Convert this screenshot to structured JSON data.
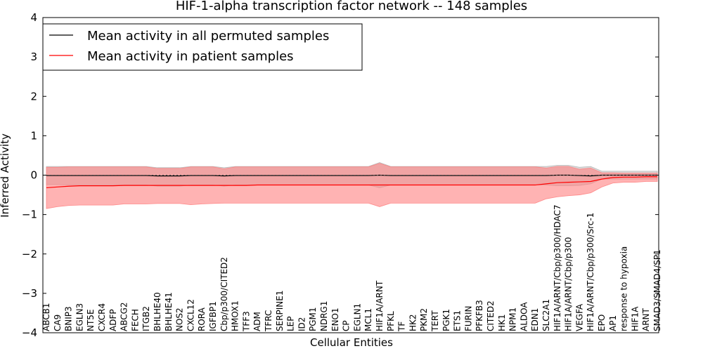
{
  "chart_data": {
    "type": "line",
    "title": "HIF-1-alpha transcription factor network -- 148 samples",
    "xlabel": "Cellular Entities",
    "ylabel": "Inferred Activity",
    "ylim": [
      -4,
      4
    ],
    "yticks": [
      -4,
      -3,
      -2,
      -1,
      0,
      1,
      2,
      3,
      4
    ],
    "legend_position": "top-left",
    "grid": false,
    "colors": {
      "permuted": "#000000",
      "patient": "#ff0000",
      "permuted_band": "#b3b3b3",
      "patient_band": "#ff8080",
      "zero_line": "#555555"
    },
    "x": [
      "ABCB1",
      "CA9",
      "BNIP3",
      "EGLN3",
      "NT5E",
      "CXCR4",
      "ADFP",
      "ABCG2",
      "FECH",
      "ITGB2",
      "BHLHE40",
      "BHLHE41",
      "NOS2",
      "CXCL12",
      "RORA",
      "IGFBP1",
      "Cbp/p300/CITED2",
      "HMOX1",
      "TFF3",
      "ADM",
      "TFRC",
      "SERPINE1",
      "LEP",
      "ID2",
      "PGM1",
      "NDRG1",
      "ENO1",
      "CP",
      "EGLN1",
      "MCL1",
      "HIF1A/ARNT",
      "PFKL",
      "TF",
      "HK2",
      "PKM2",
      "TERT",
      "PGK1",
      "ETS1",
      "FURIN",
      "PFKFB3",
      "CITED2",
      "HK1",
      "NPM1",
      "ALDOA",
      "EDN1",
      "SLC2A1",
      "HIF1A/ARNT/Cbp/p300/HDAC7",
      "HIF1A/ARNT/Cbp/p300",
      "VEGFA",
      "HIF1A/ARNT/Cbp/p300/Src-1",
      "EPO",
      "AP1",
      "response to hypoxia",
      "HIF1A",
      "ARNT",
      "SMAD3/SMAD4/SP1"
    ],
    "series": [
      {
        "name": "Mean activity in all permuted samples",
        "values": [
          -0.01,
          -0.01,
          -0.01,
          -0.01,
          -0.01,
          -0.01,
          -0.01,
          -0.01,
          -0.01,
          -0.01,
          -0.02,
          -0.02,
          -0.02,
          -0.01,
          -0.01,
          -0.01,
          -0.02,
          -0.01,
          -0.01,
          -0.01,
          -0.01,
          -0.01,
          -0.01,
          -0.01,
          -0.01,
          -0.01,
          -0.01,
          -0.01,
          -0.01,
          -0.01,
          0.0,
          -0.01,
          -0.01,
          -0.01,
          -0.01,
          -0.01,
          -0.01,
          -0.01,
          -0.01,
          -0.01,
          -0.01,
          -0.01,
          -0.01,
          -0.01,
          -0.01,
          -0.01,
          0.0,
          0.0,
          -0.01,
          -0.02,
          0.0,
          0.0,
          0.0,
          0.0,
          0.0,
          0.0
        ],
        "lower": [
          -0.24,
          -0.24,
          -0.25,
          -0.25,
          -0.25,
          -0.25,
          -0.25,
          -0.25,
          -0.25,
          -0.25,
          -0.28,
          -0.28,
          -0.28,
          -0.25,
          -0.25,
          -0.25,
          -0.28,
          -0.25,
          -0.25,
          -0.25,
          -0.25,
          -0.25,
          -0.25,
          -0.25,
          -0.25,
          -0.25,
          -0.25,
          -0.25,
          -0.25,
          -0.25,
          -0.32,
          -0.25,
          -0.25,
          -0.25,
          -0.25,
          -0.25,
          -0.25,
          -0.25,
          -0.25,
          -0.25,
          -0.25,
          -0.25,
          -0.25,
          -0.25,
          -0.25,
          -0.25,
          -0.27,
          -0.27,
          -0.26,
          -0.22,
          -0.1,
          -0.1,
          -0.1,
          -0.1,
          -0.1,
          -0.1
        ],
        "upper": [
          0.22,
          0.22,
          0.22,
          0.22,
          0.22,
          0.22,
          0.22,
          0.22,
          0.22,
          0.22,
          0.19,
          0.19,
          0.19,
          0.22,
          0.22,
          0.22,
          0.19,
          0.22,
          0.22,
          0.22,
          0.22,
          0.22,
          0.22,
          0.22,
          0.22,
          0.22,
          0.22,
          0.22,
          0.22,
          0.22,
          0.32,
          0.22,
          0.22,
          0.22,
          0.22,
          0.22,
          0.22,
          0.22,
          0.22,
          0.22,
          0.22,
          0.22,
          0.22,
          0.22,
          0.22,
          0.22,
          0.25,
          0.25,
          0.2,
          0.22,
          0.1,
          0.1,
          0.1,
          0.1,
          0.1,
          0.1
        ]
      },
      {
        "name": "Mean activity in patient samples",
        "values": [
          -0.32,
          -0.3,
          -0.28,
          -0.27,
          -0.27,
          -0.27,
          -0.27,
          -0.26,
          -0.26,
          -0.26,
          -0.26,
          -0.26,
          -0.26,
          -0.26,
          -0.26,
          -0.26,
          -0.26,
          -0.26,
          -0.26,
          -0.25,
          -0.25,
          -0.25,
          -0.25,
          -0.25,
          -0.25,
          -0.25,
          -0.25,
          -0.25,
          -0.25,
          -0.25,
          -0.25,
          -0.25,
          -0.25,
          -0.25,
          -0.25,
          -0.25,
          -0.25,
          -0.25,
          -0.25,
          -0.25,
          -0.25,
          -0.25,
          -0.25,
          -0.25,
          -0.25,
          -0.22,
          -0.19,
          -0.18,
          -0.17,
          -0.16,
          -0.1,
          -0.06,
          -0.05,
          -0.05,
          -0.04,
          -0.04
        ],
        "lower": [
          -0.85,
          -0.8,
          -0.77,
          -0.76,
          -0.76,
          -0.76,
          -0.76,
          -0.73,
          -0.73,
          -0.73,
          -0.72,
          -0.72,
          -0.72,
          -0.75,
          -0.73,
          -0.72,
          -0.71,
          -0.71,
          -0.71,
          -0.71,
          -0.71,
          -0.71,
          -0.71,
          -0.71,
          -0.71,
          -0.71,
          -0.71,
          -0.71,
          -0.71,
          -0.71,
          -0.8,
          -0.71,
          -0.71,
          -0.71,
          -0.71,
          -0.71,
          -0.71,
          -0.71,
          -0.71,
          -0.71,
          -0.71,
          -0.71,
          -0.71,
          -0.71,
          -0.71,
          -0.6,
          -0.55,
          -0.52,
          -0.5,
          -0.45,
          -0.3,
          -0.2,
          -0.18,
          -0.18,
          -0.16,
          -0.16
        ],
        "upper": [
          0.2,
          0.2,
          0.21,
          0.21,
          0.21,
          0.21,
          0.21,
          0.21,
          0.21,
          0.21,
          0.17,
          0.17,
          0.17,
          0.21,
          0.21,
          0.21,
          0.16,
          0.21,
          0.21,
          0.21,
          0.21,
          0.21,
          0.21,
          0.21,
          0.21,
          0.21,
          0.21,
          0.21,
          0.21,
          0.21,
          0.3,
          0.21,
          0.21,
          0.21,
          0.21,
          0.21,
          0.21,
          0.21,
          0.21,
          0.21,
          0.21,
          0.21,
          0.21,
          0.21,
          0.21,
          0.18,
          0.22,
          0.22,
          0.15,
          0.18,
          0.06,
          0.06,
          0.05,
          0.05,
          0.05,
          0.05
        ]
      }
    ]
  }
}
